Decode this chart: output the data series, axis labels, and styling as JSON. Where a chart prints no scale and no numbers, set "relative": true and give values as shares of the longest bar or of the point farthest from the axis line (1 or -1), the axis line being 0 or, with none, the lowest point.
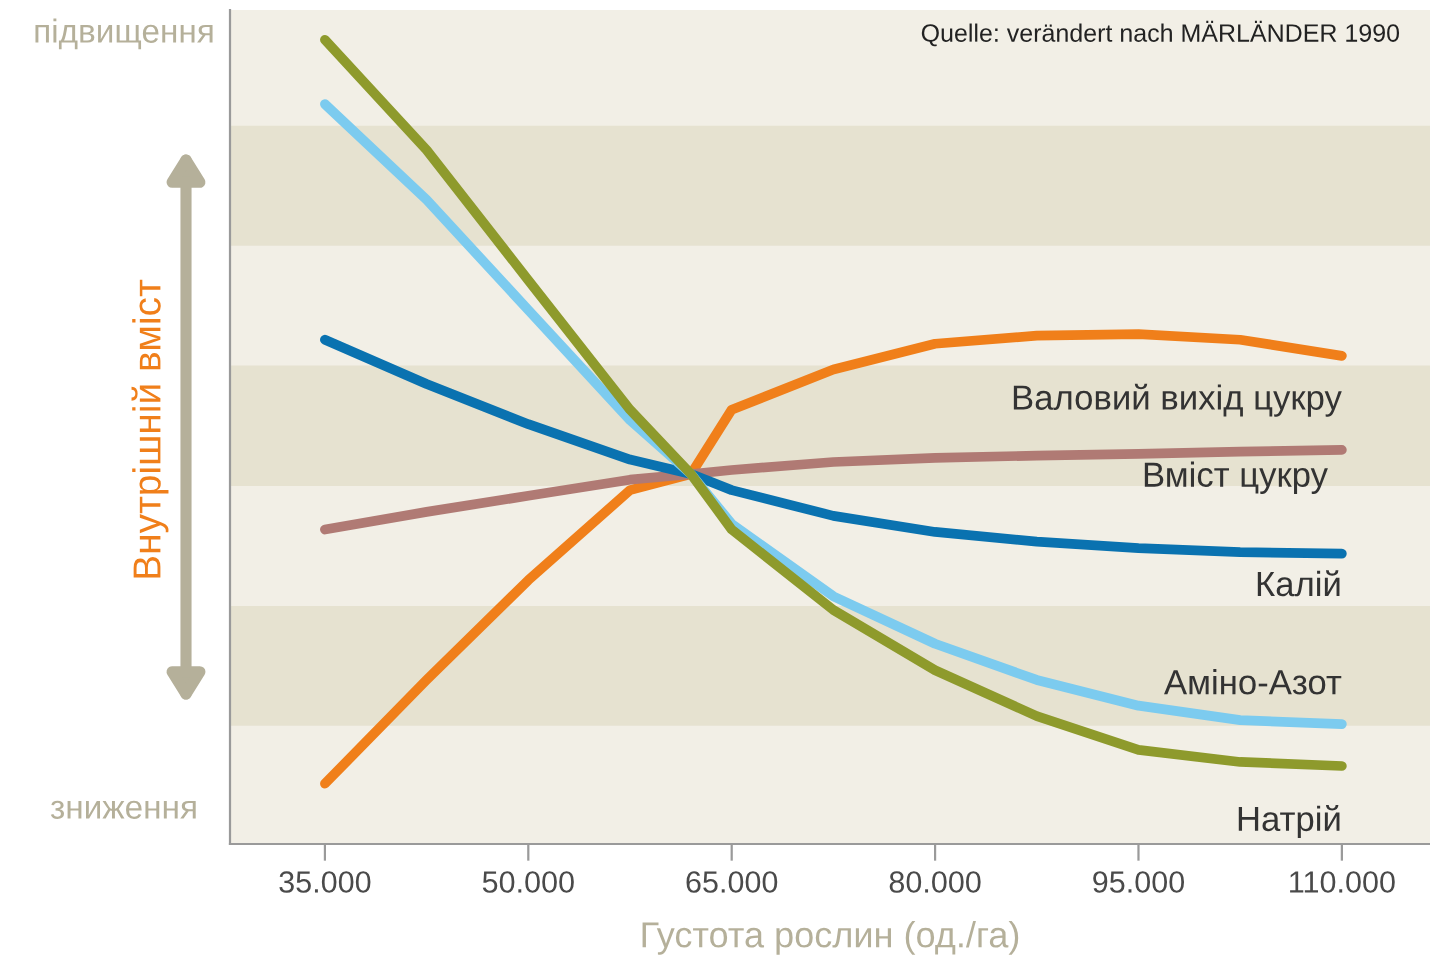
{
  "chart_data": {
    "type": "line",
    "relative": true,
    "xlabel": "Густота рослин (од./га)",
    "ylabel": "Внутрішній вміст",
    "x": [
      35000,
      42500,
      50000,
      57500,
      62000,
      65000,
      72500,
      80000,
      87500,
      95000,
      102500,
      110000
    ],
    "xlim": [
      28000,
      116500
    ],
    "xticks": [
      {
        "value": 35000,
        "label": "35.000"
      },
      {
        "value": 50000,
        "label": "50.000"
      },
      {
        "value": 65000,
        "label": "65.000"
      },
      {
        "value": 80000,
        "label": "80.000"
      },
      {
        "value": 95000,
        "label": "95.000"
      },
      {
        "value": 110000,
        "label": "110.000"
      }
    ],
    "series": [
      {
        "name": "Валовий вихід цукру",
        "color": "#f07f1a",
        "values": [
          0.075,
          0.204,
          0.328,
          0.44,
          0.46,
          0.54,
          0.59,
          0.622,
          0.632,
          0.634,
          0.627,
          0.607
        ]
      },
      {
        "name": "Вміст цукру",
        "color": "#b07a74",
        "values": [
          0.391,
          0.413,
          0.433,
          0.453,
          0.46,
          0.465,
          0.475,
          0.48,
          0.483,
          0.485,
          0.488,
          0.49
        ]
      },
      {
        "name": "Калій",
        "color": "#0a72b0",
        "values": [
          0.627,
          0.572,
          0.522,
          0.478,
          0.46,
          0.44,
          0.408,
          0.388,
          0.376,
          0.368,
          0.363,
          0.361
        ]
      },
      {
        "name": "Аміно-Азот",
        "color": "#7ccbef",
        "values": [
          0.92,
          0.801,
          0.664,
          0.527,
          0.46,
          0.398,
          0.308,
          0.249,
          0.204,
          0.172,
          0.154,
          0.149
        ]
      },
      {
        "name": "Натрій",
        "color": "#8e9a2c",
        "values": [
          1.0,
          0.863,
          0.701,
          0.54,
          0.46,
          0.391,
          0.291,
          0.216,
          0.159,
          0.117,
          0.102,
          0.097
        ]
      }
    ],
    "bands": [
      {
        "axis": "y",
        "from": 0.744,
        "to": 0.893,
        "color": "#e6e2d0"
      },
      {
        "axis": "y",
        "from": 0.445,
        "to": 0.595,
        "color": "#e6e2d0"
      },
      {
        "axis": "y",
        "from": 0.147,
        "to": 0.296,
        "color": "#e6e2d0"
      }
    ],
    "annotations": [
      "Quelle: verändert nach MÄRLÄNDER 1990",
      "підвищення",
      "зниження"
    ],
    "grid": false,
    "legend": false,
    "marker": "none",
    "line_style": "solid"
  }
}
